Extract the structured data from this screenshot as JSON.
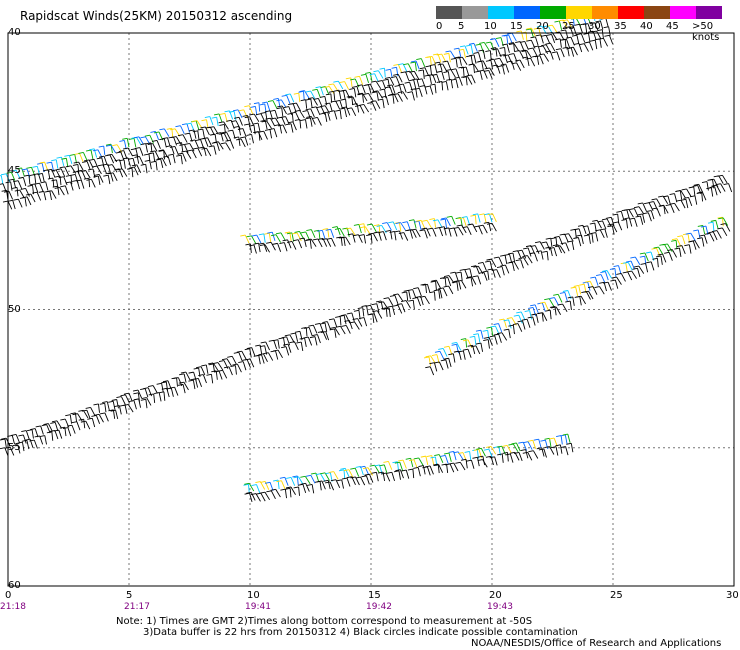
{
  "title": "Rapidscat Winds(25KM) 20150312 ascending",
  "colorbar": {
    "labels": [
      "0",
      "5",
      "10",
      "15",
      "20",
      "25",
      "30",
      "35",
      "40",
      "45",
      ">50 knots"
    ],
    "colors": [
      "#555555",
      "#999999",
      "#00c8ff",
      "#0066ff",
      "#00aa00",
      "#ffd700",
      "#ff8c00",
      "#ff0000",
      "#8b4513",
      "#ff00ff",
      "#8000a0"
    ]
  },
  "x_ticks": [
    "0",
    "5",
    "10",
    "15",
    "20",
    "25",
    "30"
  ],
  "y_ticks": [
    "-40",
    "-45",
    "-50",
    "-55",
    "-60"
  ],
  "y_ticks_partial": [
    "40",
    "45",
    "50",
    "55",
    "60"
  ],
  "times": [
    "21:18",
    "21:17",
    "19:41",
    "19:42",
    "19:43"
  ],
  "notes": {
    "line1": "Note: 1) Times are GMT 2)Times along bottom correspond to measurement at -50S",
    "line2": "3)Data buffer is 22 hrs from 20150312 4) Black circles indicate possible contamination",
    "line3": "NOAA/NESDIS/Office of Research and Applications"
  },
  "chart_data": {
    "type": "scatter",
    "title": "Rapidscat Winds(25KM) 20150312 ascending",
    "xlim": [
      0,
      30
    ],
    "ylim": [
      -60,
      -40
    ],
    "grid": true,
    "swaths": [
      {
        "x0": 0,
        "y0": -45.9,
        "x1": 25,
        "y1": -39.9,
        "width": 2.0
      },
      {
        "x0": 10,
        "y0": -47.8,
        "x1": 20.4,
        "y1": -47.0,
        "width": 1.2
      },
      {
        "x0": 0,
        "y0": -55.2,
        "x1": 30,
        "y1": -45.5,
        "width": 1.2
      },
      {
        "x0": 17.5,
        "y0": -52.2,
        "x1": 30,
        "y1": -47.0,
        "width": 1.0
      },
      {
        "x0": 10,
        "y0": -56.8,
        "x1": 23.5,
        "y1": -55.0,
        "width": 1.2
      }
    ]
  }
}
